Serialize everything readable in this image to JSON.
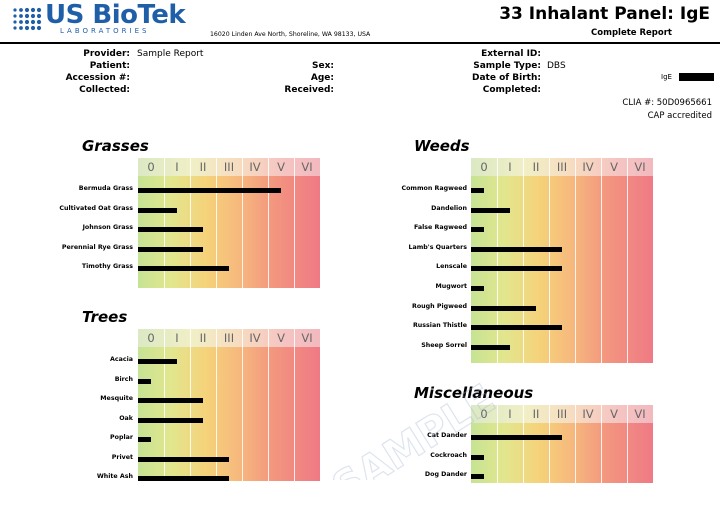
{
  "header": {
    "logo_name": "US BioTek",
    "logo_sub": "LABORATORIES",
    "address": "16020 Linden Ave North, Shoreline, WA 98133, USA",
    "title": "33 Inhalant Panel: IgE",
    "subtitle": "Complete Report"
  },
  "info": {
    "provider_label": "Provider:",
    "provider_value": "Sample Report",
    "patient_label": "Patient:",
    "accession_label": "Accession #:",
    "collected_label": "Collected:",
    "sex_label": "Sex:",
    "age_label": "Age:",
    "received_label": "Received:",
    "external_id_label": "External ID:",
    "sample_type_label": "Sample Type:",
    "sample_type_value": "DBS",
    "dob_label": "Date of Birth:",
    "completed_label": "Completed:",
    "ige_label": "IgE",
    "clia": "CLIA #: 50D0965661",
    "cap": "CAP accredited"
  },
  "class_labels": [
    "0",
    "I",
    "II",
    "III",
    "IV",
    "V",
    "VI"
  ],
  "panels": [
    {
      "title": "Grasses",
      "items": [
        {
          "name": "Bermuda Grass",
          "level": 5.5
        },
        {
          "name": "Cultivated Oat Grass",
          "level": 1.5
        },
        {
          "name": "Johnson Grass",
          "level": 2.5
        },
        {
          "name": "Perennial Rye Grass",
          "level": 2.5
        },
        {
          "name": "Timothy Grass",
          "level": 3.5
        }
      ]
    },
    {
      "title": "Trees",
      "items": [
        {
          "name": "Acacia",
          "level": 1.5
        },
        {
          "name": "Birch",
          "level": 0.5
        },
        {
          "name": "Mesquite",
          "level": 2.5
        },
        {
          "name": "Oak",
          "level": 2.5
        },
        {
          "name": "Poplar",
          "level": 0.5
        },
        {
          "name": "Privet",
          "level": 3.5
        },
        {
          "name": "White Ash",
          "level": 3.5
        }
      ]
    },
    {
      "title": "Weeds",
      "items": [
        {
          "name": "Common Ragweed",
          "level": 0.5
        },
        {
          "name": "Dandelion",
          "level": 1.5
        },
        {
          "name": "False Ragweed",
          "level": 0.5
        },
        {
          "name": "Lamb's Quarters",
          "level": 3.5
        },
        {
          "name": "Lenscale",
          "level": 3.5
        },
        {
          "name": "Mugwort",
          "level": 0.5
        },
        {
          "name": "Rough Pigweed",
          "level": 2.5
        },
        {
          "name": "Russian Thistle",
          "level": 3.5
        },
        {
          "name": "Sheep Sorrel",
          "level": 1.5
        }
      ]
    },
    {
      "title": "Miscellaneous",
      "items": [
        {
          "name": "Cat Dander",
          "level": 3.5
        },
        {
          "name": "Cockroach",
          "level": 0.5
        },
        {
          "name": "Dog Dander",
          "level": 0.5
        }
      ]
    }
  ]
}
